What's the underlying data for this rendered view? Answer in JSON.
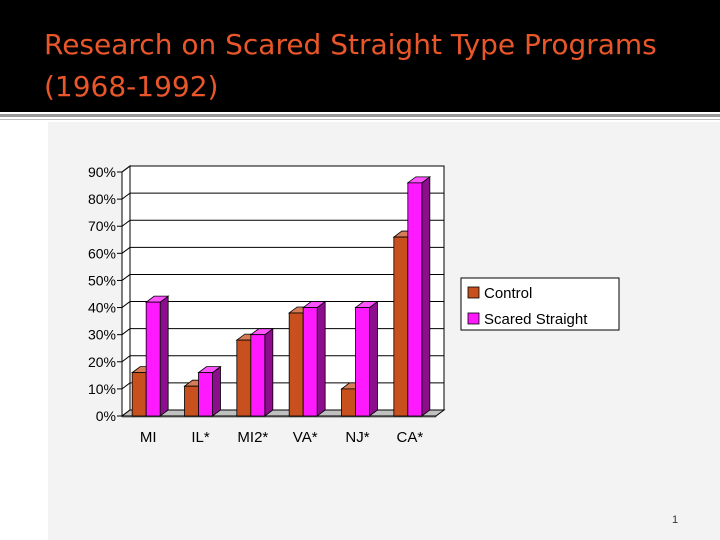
{
  "slide": {
    "title": "Research on Scared Straight Type Programs (1968-1992)",
    "page_number": "1"
  },
  "chart_data": {
    "type": "bar",
    "categories": [
      "MI",
      "IL*",
      "MI2*",
      "VA*",
      "NJ*",
      "CA*"
    ],
    "series": [
      {
        "name": "Control",
        "values": [
          16,
          11,
          28,
          38,
          10,
          66
        ],
        "color": "#c8501e"
      },
      {
        "name": "Scared Straight",
        "values": [
          42,
          16,
          30,
          40,
          40,
          86
        ],
        "color": "#ff19ff"
      }
    ],
    "ytick_labels": [
      "0%",
      "10%",
      "20%",
      "30%",
      "40%",
      "50%",
      "60%",
      "70%",
      "80%",
      "90%"
    ],
    "ylim": [
      0,
      90
    ],
    "grid": true,
    "legend_position": "right",
    "style": "3d-bar"
  }
}
